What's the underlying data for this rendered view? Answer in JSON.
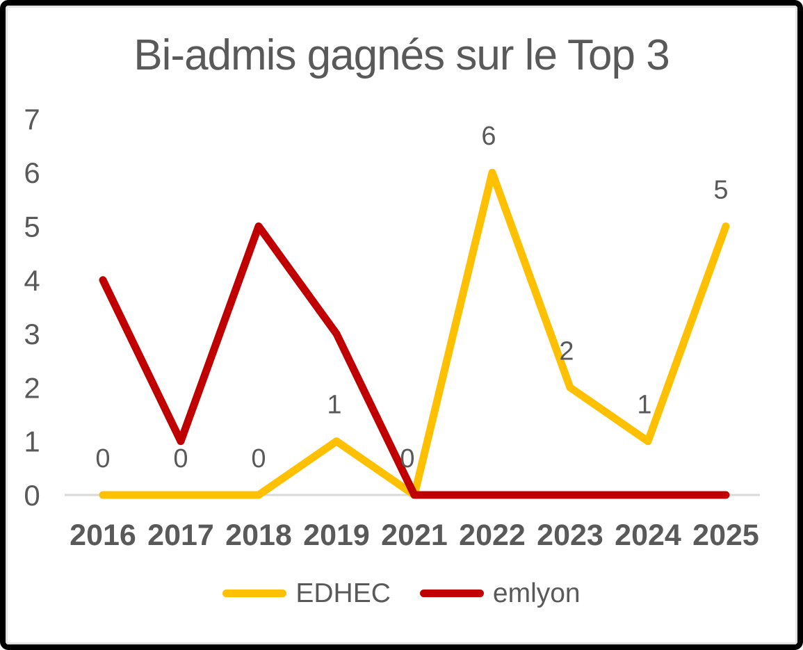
{
  "chart_data": {
    "type": "line",
    "title": "Bi-admis gagnés sur le Top 3",
    "categories": [
      "2016",
      "2017",
      "2018",
      "2019",
      "2021",
      "2022",
      "2023",
      "2024",
      "2025"
    ],
    "series": [
      {
        "name": "EDHEC",
        "color": "#FFC000",
        "values": [
          0,
          0,
          0,
          1,
          0,
          6,
          2,
          1,
          5
        ],
        "data_labels": [
          "0",
          "0",
          "0",
          "1",
          "0",
          "6",
          "2",
          "1",
          "5"
        ]
      },
      {
        "name": "emlyon",
        "color": "#C00000",
        "values": [
          4,
          1,
          5,
          3,
          0,
          0,
          0,
          0,
          0
        ],
        "data_labels": null
      }
    ],
    "ylim": [
      0,
      7
    ],
    "yticks": [
      "0",
      "1",
      "2",
      "3",
      "4",
      "5",
      "6",
      "7"
    ],
    "grid": false,
    "legend_position": "bottom",
    "text_color": "#595959",
    "axis_line_color": "#d9d9d9",
    "frame_color": "#000000"
  }
}
